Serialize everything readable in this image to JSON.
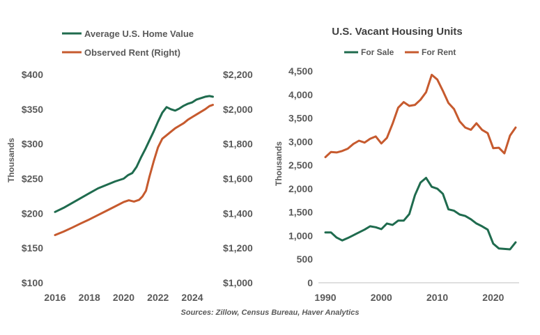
{
  "source_note": "Sources: Zillow, Census Bureau, Haver Analytics",
  "colors": {
    "green": "#1f6b4e",
    "orange": "#c65a2e",
    "text": "#595959"
  },
  "chart_data": [
    {
      "type": "line",
      "title": "",
      "ylabel": "Thousands",
      "x_ticks": [
        "2016",
        "2018",
        "2020",
        "2022",
        "2024"
      ],
      "y_ticks": [
        "$100",
        "$150",
        "$200",
        "$250",
        "$300",
        "$350",
        "$400"
      ],
      "y_right_ticks": [
        "$1,000",
        "$1,200",
        "$1,400",
        "$1,600",
        "$1,800",
        "$2,000",
        "$2,200"
      ],
      "xlim": [
        2016,
        2025.3
      ],
      "ylim": [
        100,
        400
      ],
      "ylim_right": [
        1000,
        2200
      ],
      "legend": "top",
      "series": [
        {
          "name": "Average U.S. Home Value",
          "axis": "left",
          "x": [
            2016.0,
            2016.5,
            2017.0,
            2017.5,
            2018.0,
            2018.5,
            2019.0,
            2019.5,
            2020.0,
            2020.25,
            2020.5,
            2020.75,
            2021.0,
            2021.25,
            2021.5,
            2021.75,
            2022.0,
            2022.25,
            2022.5,
            2022.75,
            2023.0,
            2023.25,
            2023.5,
            2023.75,
            2024.0,
            2024.25,
            2024.5,
            2024.75,
            2025.0,
            2025.2
          ],
          "values": [
            202,
            208,
            215,
            222,
            229,
            236,
            241,
            246,
            250,
            255,
            258,
            267,
            280,
            292,
            305,
            318,
            332,
            345,
            353,
            350,
            348,
            351,
            355,
            358,
            360,
            364,
            366,
            368,
            369,
            368
          ]
        },
        {
          "name": "Observed Rent (Right)",
          "axis": "right",
          "x": [
            2016.0,
            2016.5,
            2017.0,
            2017.5,
            2018.0,
            2018.5,
            2019.0,
            2019.5,
            2020.0,
            2020.3,
            2020.6,
            2020.9,
            2021.1,
            2021.3,
            2021.5,
            2021.75,
            2022.0,
            2022.25,
            2022.5,
            2022.75,
            2023.0,
            2023.25,
            2023.5,
            2023.75,
            2024.0,
            2024.25,
            2024.5,
            2024.75,
            2025.0,
            2025.2
          ],
          "values": [
            1275,
            1295,
            1318,
            1342,
            1365,
            1390,
            1415,
            1440,
            1465,
            1475,
            1468,
            1478,
            1498,
            1530,
            1610,
            1700,
            1780,
            1830,
            1850,
            1870,
            1890,
            1905,
            1920,
            1940,
            1955,
            1970,
            1985,
            2000,
            2018,
            2025
          ]
        }
      ]
    },
    {
      "type": "line",
      "title": "U.S. Vacant Housing Units",
      "ylabel": "Thousands",
      "x_ticks": [
        "1990",
        "2000",
        "2010",
        "2020"
      ],
      "y_ticks": [
        "0",
        "500",
        "1,000",
        "1,500",
        "2,000",
        "2,500",
        "3,000",
        "3,500",
        "4,000",
        "4,500"
      ],
      "xlim": [
        1989.5,
        2024.5
      ],
      "ylim": [
        0,
        4500
      ],
      "legend": "top",
      "series": [
        {
          "name": "For Sale",
          "x": [
            1990,
            1991,
            1992,
            1993,
            1994,
            1995,
            1996,
            1997,
            1998,
            1999,
            2000,
            2001,
            2002,
            2003,
            2004,
            2005,
            2006,
            2007,
            2008,
            2009,
            2010,
            2011,
            2012,
            2013,
            2014,
            2015,
            2016,
            2017,
            2018,
            2019,
            2020,
            2021,
            2022,
            2023,
            2024
          ],
          "values": [
            1070,
            1070,
            960,
            900,
            950,
            1010,
            1070,
            1130,
            1200,
            1180,
            1140,
            1260,
            1230,
            1320,
            1320,
            1460,
            1860,
            2130,
            2230,
            2040,
            2000,
            1890,
            1560,
            1530,
            1450,
            1420,
            1350,
            1260,
            1200,
            1130,
            830,
            730,
            720,
            710,
            860
          ]
        },
        {
          "name": "For Rent",
          "x": [
            1990,
            1991,
            1992,
            1993,
            1994,
            1995,
            1996,
            1997,
            1998,
            1999,
            2000,
            2001,
            2002,
            2003,
            2004,
            2005,
            2006,
            2007,
            2008,
            2009,
            2010,
            2011,
            2012,
            2013,
            2014,
            2015,
            2016,
            2017,
            2018,
            2019,
            2020,
            2021,
            2022,
            2023,
            2024
          ],
          "values": [
            2670,
            2780,
            2770,
            2800,
            2850,
            2950,
            3020,
            2980,
            3060,
            3110,
            2960,
            3080,
            3380,
            3720,
            3840,
            3760,
            3780,
            3890,
            4050,
            4420,
            4320,
            4080,
            3820,
            3690,
            3430,
            3300,
            3250,
            3390,
            3250,
            3180,
            2860,
            2870,
            2750,
            3130,
            3300
          ]
        }
      ]
    }
  ]
}
